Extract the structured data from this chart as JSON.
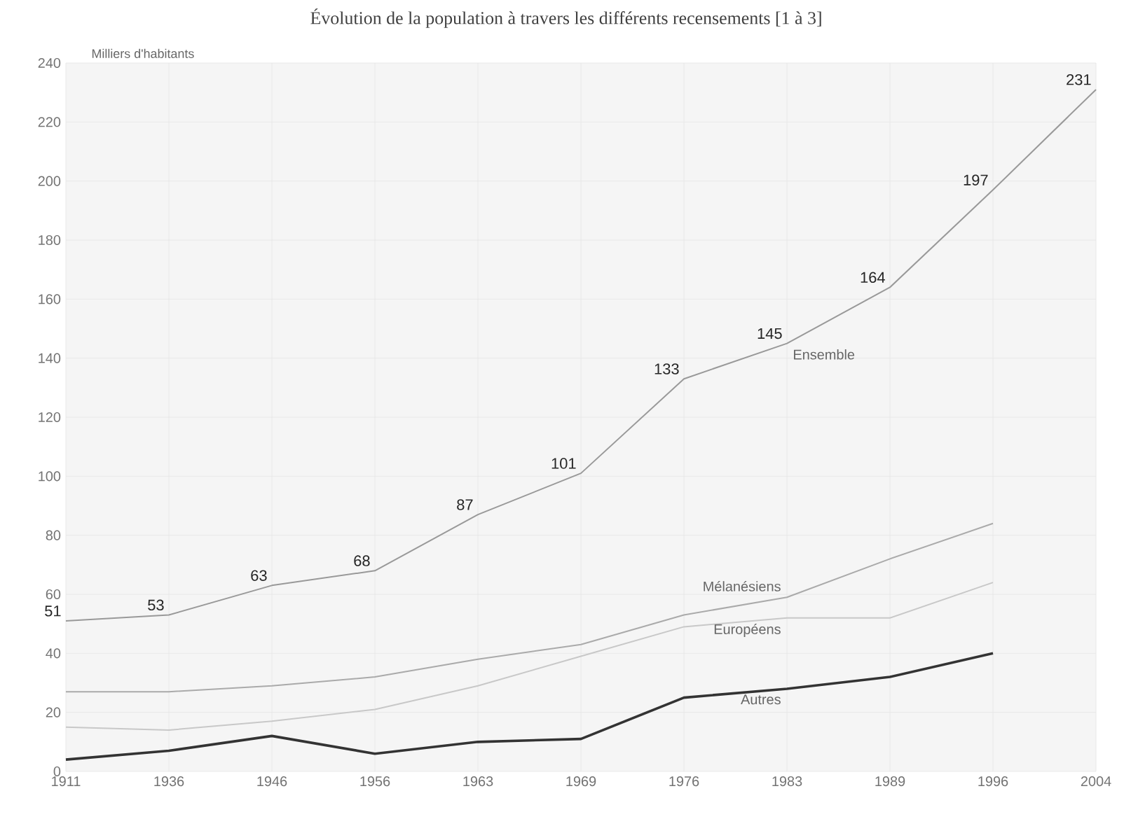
{
  "chart_data": {
    "type": "line",
    "title": "Évolution de la population à travers les différents recensements [1 à 3]",
    "ylabel": "Milliers d'habitants",
    "categories": [
      "1911",
      "1936",
      "1946",
      "1956",
      "1963",
      "1969",
      "1976",
      "1983",
      "1989",
      "1996",
      "2004"
    ],
    "series": [
      {
        "name": "Ensemble",
        "color": "#999999",
        "values": [
          51,
          53,
          63,
          68,
          87,
          101,
          133,
          145,
          164,
          197,
          231
        ],
        "value_labels": [
          "51",
          "53",
          "63",
          "68",
          "87",
          "101",
          "133",
          "145",
          "164",
          "197",
          "231"
        ]
      },
      {
        "name": "Mélanésiens",
        "color": "#aaaaaa",
        "values": [
          27,
          27,
          29,
          32,
          38,
          43,
          53,
          59,
          72,
          84,
          null
        ]
      },
      {
        "name": "Européens",
        "color": "#c8c8c8",
        "values": [
          15,
          14,
          17,
          21,
          29,
          39,
          49,
          52,
          52,
          64,
          null
        ]
      },
      {
        "name": "Autres",
        "color": "#333333",
        "values": [
          4,
          7,
          12,
          6,
          10,
          11,
          25,
          28,
          32,
          40,
          null
        ]
      }
    ],
    "ylim": [
      0,
      240
    ],
    "yticks": [
      0,
      20,
      40,
      60,
      80,
      100,
      120,
      140,
      160,
      180,
      200,
      220,
      240
    ],
    "grid": true,
    "legend": false,
    "marker": "none",
    "line_style": "solid"
  }
}
